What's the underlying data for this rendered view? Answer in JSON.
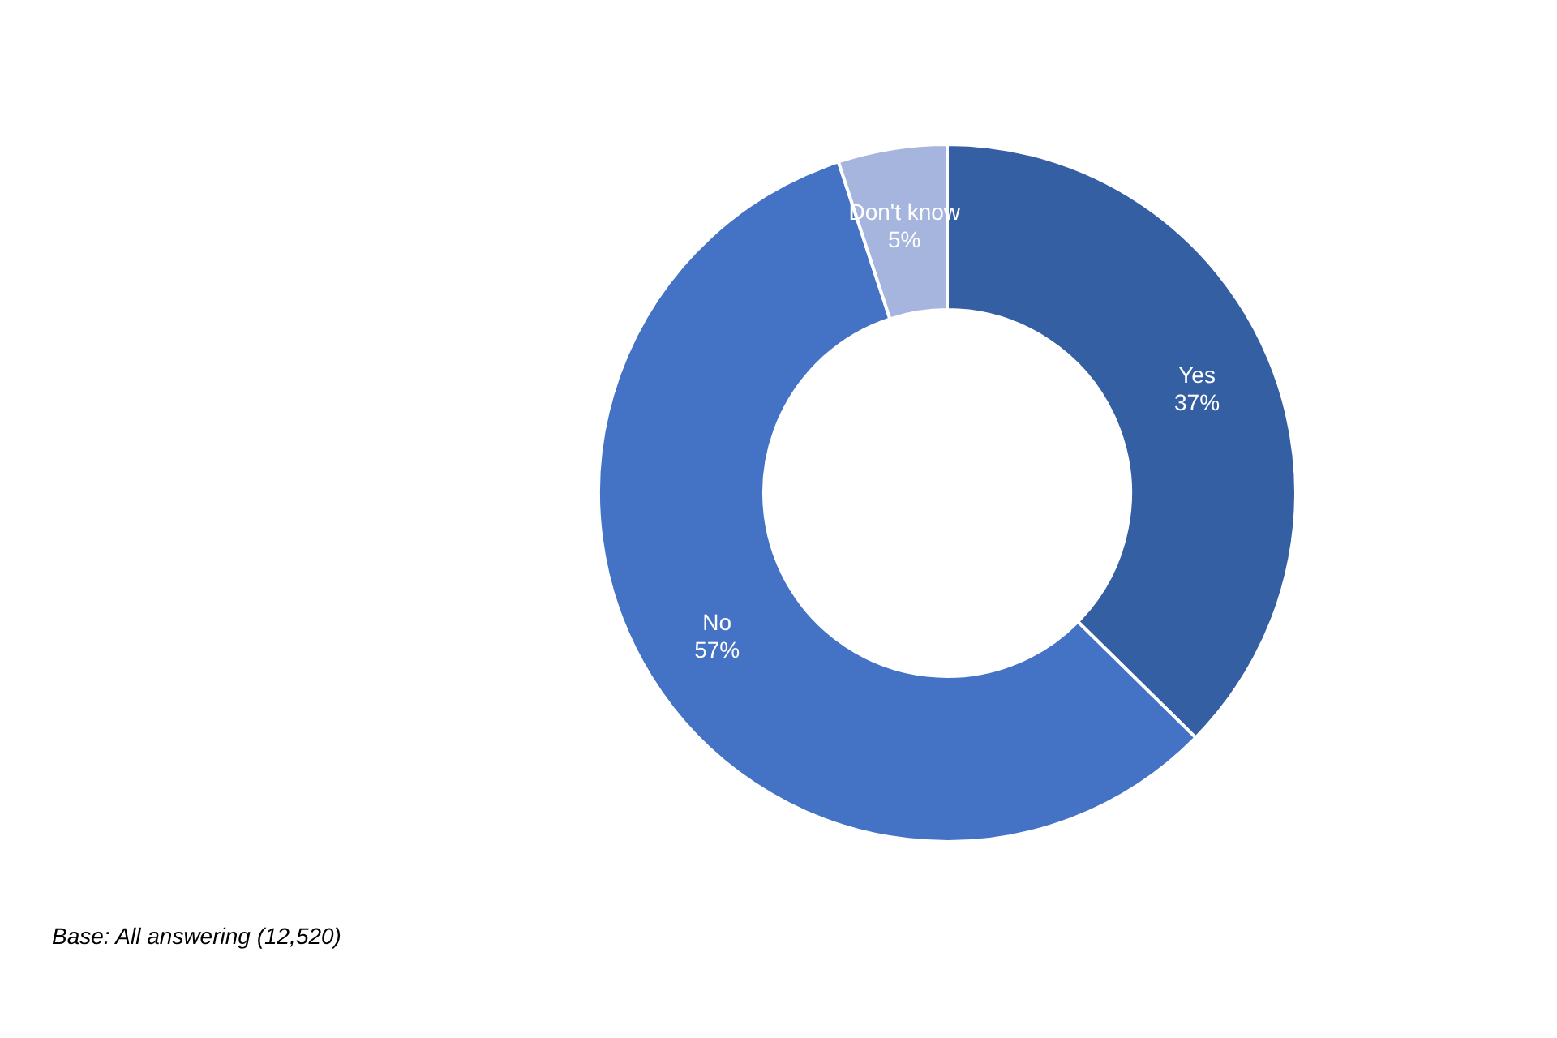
{
  "chart_data": {
    "type": "donut",
    "categories": [
      "Yes",
      "No",
      "Don't know"
    ],
    "values": [
      37,
      57,
      5
    ],
    "value_labels": [
      "37%",
      "57%",
      "5%"
    ],
    "colors": [
      "#355fa3",
      "#4472c4",
      "#a5b5dd"
    ],
    "legend": false,
    "annotations": [
      "Base: All answering (12,520)"
    ]
  }
}
